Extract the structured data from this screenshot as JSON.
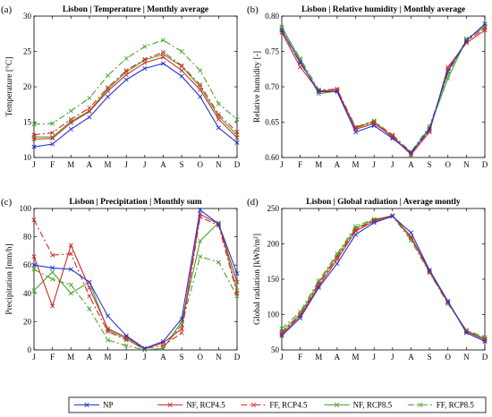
{
  "legend": [
    {
      "label": "NP",
      "color": "#1f35d6",
      "dash": "",
      "marker": "x"
    },
    {
      "label": "NF, RCP4.5",
      "color": "#d42a2a",
      "dash": "",
      "marker": "x"
    },
    {
      "label": "FF, RCP4.5",
      "color": "#d42a2a",
      "dash": "7,3,2,3",
      "marker": "x"
    },
    {
      "label": "NF, RCP8.5",
      "color": "#49a32b",
      "dash": "",
      "marker": "x"
    },
    {
      "label": "FF, RCP8.5",
      "color": "#49a32b",
      "dash": "7,3,2,3",
      "marker": "x"
    }
  ],
  "chart_data": [
    {
      "panel": "(a)",
      "type": "line",
      "title": "Lisbon | Temperature | Monthly average",
      "xlabel": "",
      "ylabel": "Temperature [°C]",
      "categories": [
        "J",
        "F",
        "M",
        "A",
        "M",
        "J",
        "J",
        "A",
        "S",
        "O",
        "N",
        "D"
      ],
      "ylim": [
        10,
        30
      ],
      "yticks": [
        10,
        15,
        20,
        25,
        30
      ],
      "ytick_labels": [
        "10",
        "15",
        "20",
        "25",
        "30"
      ],
      "series": [
        {
          "name": "NP",
          "values": [
            11.5,
            11.9,
            14.0,
            15.7,
            18.6,
            21.0,
            22.6,
            23.3,
            21.5,
            18.6,
            14.2,
            12.1
          ]
        },
        {
          "name": "NF, RCP4.5",
          "values": [
            12.6,
            12.7,
            14.9,
            16.5,
            19.4,
            21.7,
            23.4,
            24.2,
            22.3,
            19.6,
            15.4,
            12.8
          ]
        },
        {
          "name": "FF, RCP4.5",
          "values": [
            13.2,
            13.5,
            15.4,
            17.0,
            19.9,
            22.3,
            23.9,
            24.9,
            23.0,
            20.3,
            16.1,
            13.6
          ]
        },
        {
          "name": "NF, RCP8.5",
          "values": [
            12.9,
            12.9,
            15.1,
            16.6,
            19.7,
            22.1,
            23.8,
            24.6,
            22.9,
            20.0,
            15.8,
            13.2
          ]
        },
        {
          "name": "FF, RCP8.5",
          "values": [
            14.7,
            14.8,
            16.6,
            18.4,
            21.6,
            24.0,
            25.7,
            26.6,
            25.0,
            22.3,
            17.6,
            15.4
          ]
        }
      ]
    },
    {
      "panel": "(b)",
      "type": "line",
      "title": "Lisbon | Relative humidity | Monthly average",
      "xlabel": "",
      "ylabel": "Relative humidity [-]",
      "categories": [
        "J",
        "F",
        "M",
        "A",
        "M",
        "J",
        "J",
        "A",
        "S",
        "O",
        "N",
        "D"
      ],
      "ylim": [
        0.6,
        0.8
      ],
      "yticks": [
        0.6,
        0.65,
        0.7,
        0.75,
        0.8
      ],
      "ytick_labels": [
        "0.60",
        "0.65",
        "0.70",
        "0.75",
        "0.80"
      ],
      "series": [
        {
          "name": "NP",
          "values": [
            0.78,
            0.735,
            0.693,
            0.693,
            0.636,
            0.645,
            0.627,
            0.607,
            0.64,
            0.722,
            0.765,
            0.789
          ]
        },
        {
          "name": "NF, RCP4.5",
          "values": [
            0.777,
            0.728,
            0.694,
            0.695,
            0.64,
            0.648,
            0.63,
            0.604,
            0.636,
            0.728,
            0.762,
            0.78
          ]
        },
        {
          "name": "FF, RCP4.5",
          "values": [
            0.78,
            0.733,
            0.695,
            0.697,
            0.642,
            0.65,
            0.632,
            0.607,
            0.638,
            0.725,
            0.764,
            0.783
          ]
        },
        {
          "name": "NF, RCP8.5",
          "values": [
            0.785,
            0.738,
            0.69,
            0.694,
            0.642,
            0.651,
            0.628,
            0.605,
            0.642,
            0.712,
            0.767,
            0.785
          ]
        },
        {
          "name": "FF, RCP8.5",
          "values": [
            0.783,
            0.74,
            0.696,
            0.696,
            0.643,
            0.652,
            0.631,
            0.608,
            0.644,
            0.718,
            0.768,
            0.786
          ]
        }
      ]
    },
    {
      "panel": "(c)",
      "type": "line",
      "title": "Lisbon | Precipitation | Monthly sum",
      "xlabel": "",
      "ylabel": "Precipitation [mm/h]",
      "categories": [
        "J",
        "F",
        "M",
        "A",
        "M",
        "J",
        "J",
        "A",
        "S",
        "O",
        "N",
        "D"
      ],
      "ylim": [
        0,
        100
      ],
      "yticks": [
        0,
        20,
        40,
        60,
        80,
        100
      ],
      "ytick_labels": [
        "0",
        "20",
        "40",
        "60",
        "80",
        "100"
      ],
      "series": [
        {
          "name": "NP",
          "values": [
            60,
            58,
            57,
            48,
            24,
            10,
            1,
            6,
            22,
            99,
            89,
            54
          ]
        },
        {
          "name": "NF, RCP4.5",
          "values": [
            66,
            31,
            74,
            44,
            15,
            9,
            1,
            5,
            15,
            96,
            89,
            48
          ]
        },
        {
          "name": "FF, RCP4.5",
          "values": [
            92,
            67,
            68,
            38,
            13,
            7,
            1,
            3,
            12,
            94,
            88,
            40
          ]
        },
        {
          "name": "NF, RCP8.5",
          "values": [
            42,
            55,
            40,
            48,
            14,
            8,
            0,
            1,
            20,
            77,
            90,
            42
          ]
        },
        {
          "name": "FF, RCP8.5",
          "values": [
            57,
            50,
            46,
            29,
            7,
            3,
            0,
            1,
            18,
            66,
            62,
            38
          ]
        }
      ]
    },
    {
      "panel": "(d)",
      "type": "line",
      "title": "Lisbon | Global radiation | Average montly",
      "xlabel": "",
      "ylabel": "Global radiation [kWh/m²]",
      "categories": [
        "J",
        "F",
        "M",
        "A",
        "M",
        "J",
        "J",
        "A",
        "S",
        "O",
        "N",
        "D"
      ],
      "ylim": [
        50,
        250
      ],
      "yticks": [
        50,
        100,
        150,
        200,
        250
      ],
      "ytick_labels": [
        "50",
        "100",
        "150",
        "200",
        "250"
      ],
      "series": [
        {
          "name": "NP",
          "values": [
            70,
            95,
            138,
            172,
            213,
            230,
            239,
            216,
            163,
            119,
            74,
            62
          ]
        },
        {
          "name": "NF, RCP4.5",
          "values": [
            72,
            98,
            140,
            178,
            218,
            232,
            240,
            210,
            162,
            118,
            76,
            64
          ]
        },
        {
          "name": "FF, RCP4.5",
          "values": [
            74,
            99,
            143,
            181,
            220,
            233,
            240,
            209,
            160,
            117,
            76,
            65
          ]
        },
        {
          "name": "NF, RCP8.5",
          "values": [
            76,
            101,
            145,
            183,
            222,
            234,
            240,
            208,
            161,
            118,
            77,
            66
          ]
        },
        {
          "name": "FF, RCP8.5",
          "values": [
            80,
            104,
            148,
            186,
            225,
            235,
            239,
            205,
            159,
            115,
            78,
            68
          ]
        }
      ]
    }
  ]
}
